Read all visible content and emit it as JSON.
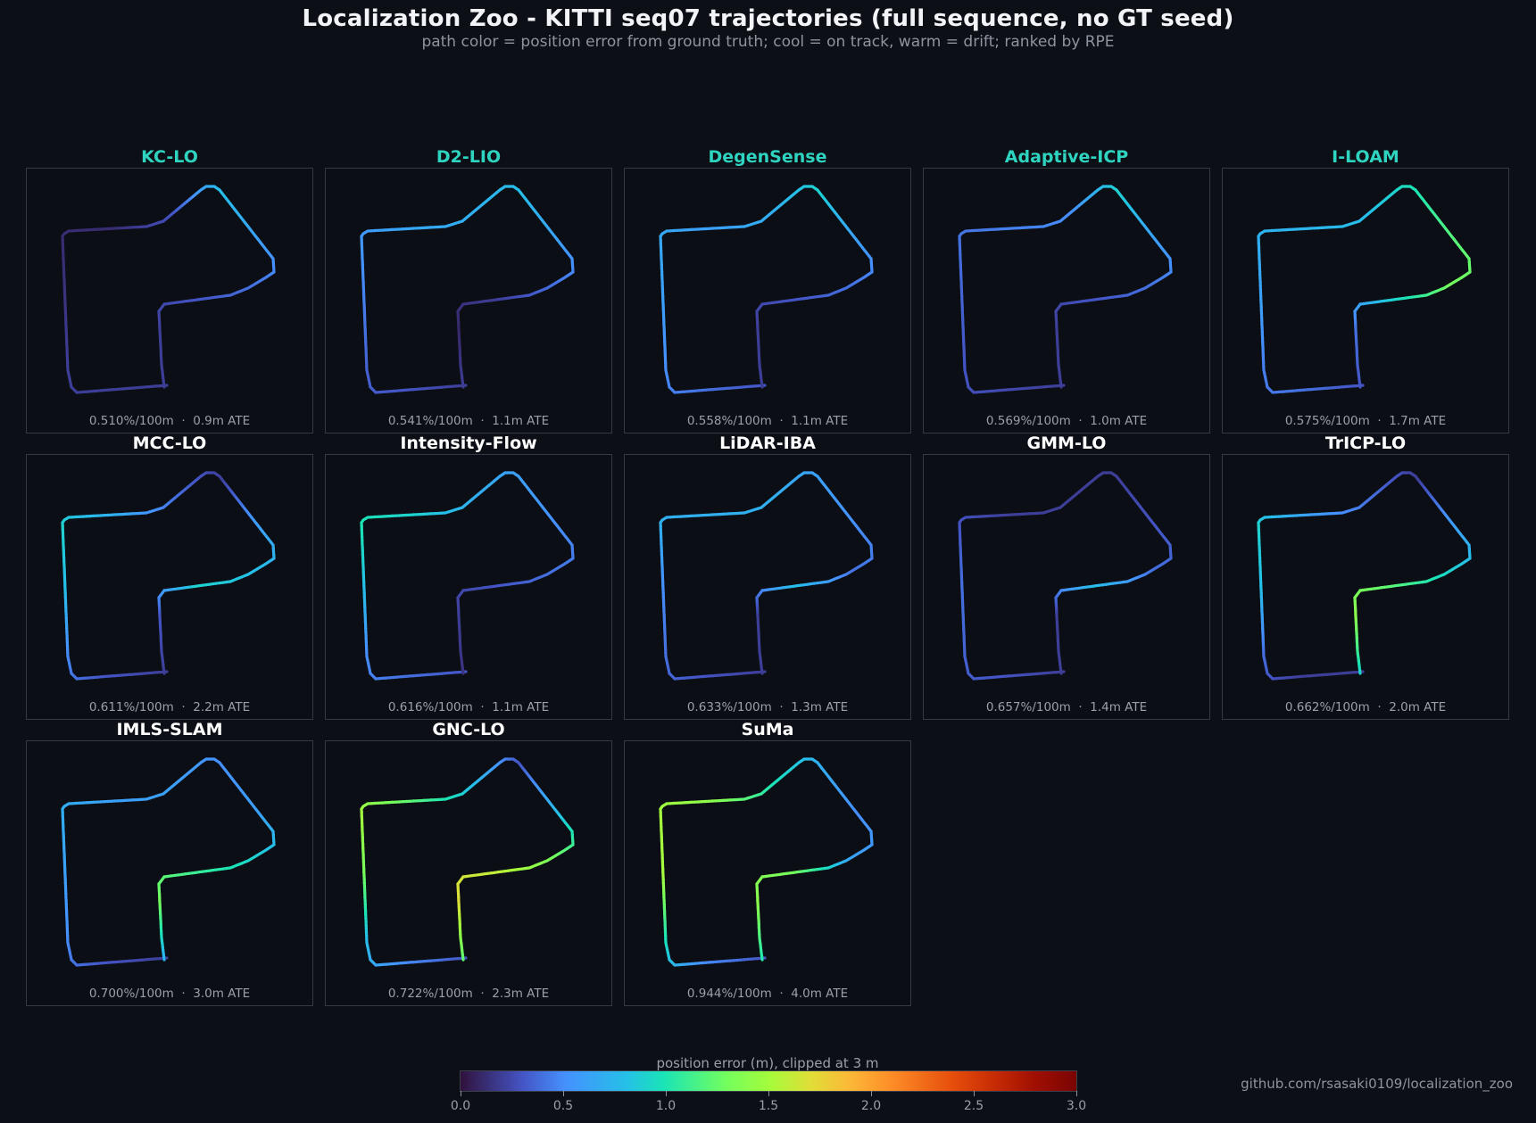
{
  "title": "Localization Zoo - KITTI seq07 trajectories (full sequence, no GT seed)",
  "subtitle": "path color = position error from ground truth; cool = on track, warm = drift; ranked by RPE",
  "footer": "github.com/rsasaki0109/localization_zoo",
  "colors": {
    "background": "#0c0f16",
    "top5_title": "#2ed4bf",
    "title": "#ffffff",
    "stats_text": "#9aa0a8"
  },
  "colorbar": {
    "label": "position error (m), clipped at 3 m",
    "colormap": "turbo",
    "min": 0.0,
    "max": 3.0,
    "ticks": [
      "0.0",
      "0.5",
      "1.0",
      "1.5",
      "2.0",
      "2.5",
      "3.0"
    ]
  },
  "chart_data": {
    "type": "trajectory-grid",
    "title": "Localization Zoo - KITTI seq07 trajectories (full sequence, no GT seed)",
    "color_encoding": "position error (m), clipped at 3 m",
    "ranking": "RPE",
    "panels": [
      {
        "name": "KC-LO",
        "rpe": "0.510%/100m",
        "ate": "0.9m ATE",
        "rpe_value": 0.51,
        "ate_m": 0.9,
        "top5": true,
        "err": [
          0.2,
          0.2,
          0.2,
          0.15,
          0.12,
          0.12,
          0.3,
          0.8,
          0.6,
          0.4,
          0.3,
          0.2,
          0.2
        ]
      },
      {
        "name": "D2-LIO",
        "rpe": "0.541%/100m",
        "ate": "1.1m ATE",
        "rpe_value": 0.541,
        "ate_m": 1.1,
        "top5": true,
        "err": [
          0.2,
          0.3,
          0.35,
          0.45,
          0.55,
          0.65,
          0.7,
          0.8,
          0.6,
          0.4,
          0.2,
          0.1,
          0.2
        ]
      },
      {
        "name": "DegenSense",
        "rpe": "0.558%/100m",
        "ate": "1.1m ATE",
        "rpe_value": 0.558,
        "ate_m": 1.1,
        "top5": true,
        "err": [
          0.3,
          0.4,
          0.5,
          0.6,
          0.65,
          0.6,
          0.7,
          0.9,
          0.6,
          0.4,
          0.3,
          0.2,
          0.2
        ]
      },
      {
        "name": "Adaptive-ICP",
        "rpe": "0.569%/100m",
        "ate": "1.0m ATE",
        "rpe_value": 0.569,
        "ate_m": 1.0,
        "top5": true,
        "err": [
          0.2,
          0.25,
          0.3,
          0.35,
          0.4,
          0.45,
          0.5,
          0.9,
          0.6,
          0.4,
          0.3,
          0.2,
          0.2
        ]
      },
      {
        "name": "I-LOAM",
        "rpe": "0.575%/100m",
        "ate": "1.7m ATE",
        "rpe_value": 0.575,
        "ate_m": 1.7,
        "top5": true,
        "err": [
          0.3,
          0.4,
          0.45,
          0.6,
          0.7,
          0.75,
          0.8,
          1.0,
          1.2,
          1.3,
          0.9,
          0.4,
          0.3
        ]
      },
      {
        "name": "MCC-LO",
        "rpe": "0.611%/100m",
        "ate": "2.2m ATE",
        "rpe_value": 0.611,
        "ate_m": 2.2,
        "top5": false,
        "err": [
          0.2,
          0.3,
          0.5,
          0.8,
          0.9,
          0.7,
          0.4,
          0.2,
          0.6,
          0.8,
          0.9,
          0.3,
          0.2
        ]
      },
      {
        "name": "Intensity-Flow",
        "rpe": "0.616%/100m",
        "ate": "1.1m ATE",
        "rpe_value": 0.616,
        "ate_m": 1.1,
        "top5": false,
        "err": [
          0.3,
          0.4,
          0.5,
          0.8,
          1.0,
          0.9,
          0.7,
          0.6,
          0.5,
          0.4,
          0.3,
          0.2,
          0.15
        ]
      },
      {
        "name": "LiDAR-IBA",
        "rpe": "0.633%/100m",
        "ate": "1.3m ATE",
        "rpe_value": 0.633,
        "ate_m": 1.3,
        "top5": false,
        "err": [
          0.2,
          0.3,
          0.4,
          0.5,
          0.7,
          0.7,
          0.7,
          0.6,
          0.5,
          0.4,
          0.8,
          0.2,
          0.2
        ]
      },
      {
        "name": "GMM-LO",
        "rpe": "0.657%/100m",
        "ate": "1.4m ATE",
        "rpe_value": 0.657,
        "ate_m": 1.4,
        "top5": false,
        "err": [
          0.2,
          0.3,
          0.35,
          0.4,
          0.3,
          0.2,
          0.2,
          0.2,
          0.3,
          0.4,
          0.8,
          0.2,
          0.2
        ]
      },
      {
        "name": "TrICP-LO",
        "rpe": "0.662%/100m",
        "ate": "2.0m ATE",
        "rpe_value": 0.662,
        "ate_m": 2.0,
        "top5": false,
        "err": [
          0.2,
          0.2,
          0.4,
          0.8,
          0.9,
          0.6,
          0.4,
          0.2,
          0.6,
          0.9,
          1.2,
          1.4,
          0.9
        ]
      },
      {
        "name": "IMLS-SLAM",
        "rpe": "0.700%/100m",
        "ate": "3.0m ATE",
        "rpe_value": 0.7,
        "ate_m": 3.0,
        "top5": false,
        "err": [
          0.2,
          0.3,
          0.5,
          0.6,
          0.7,
          0.6,
          0.6,
          0.5,
          0.6,
          0.9,
          1.1,
          1.3,
          0.7
        ]
      },
      {
        "name": "GNC-LO",
        "rpe": "0.722%/100m",
        "ate": "2.3m ATE",
        "rpe_value": 0.722,
        "ate_m": 2.3,
        "top5": false,
        "err": [
          0.3,
          0.5,
          0.8,
          1.3,
          1.5,
          1.2,
          0.8,
          0.3,
          0.8,
          1.3,
          1.6,
          1.7,
          1.2
        ]
      },
      {
        "name": "SuMa",
        "rpe": "0.944%/100m",
        "ate": "4.0m ATE",
        "rpe_value": 0.944,
        "ate_m": 4.0,
        "top5": false,
        "err": [
          0.3,
          0.5,
          1.0,
          1.5,
          1.5,
          1.4,
          1.0,
          0.7,
          0.5,
          0.6,
          1.3,
          1.4,
          1.0
        ]
      }
    ]
  }
}
